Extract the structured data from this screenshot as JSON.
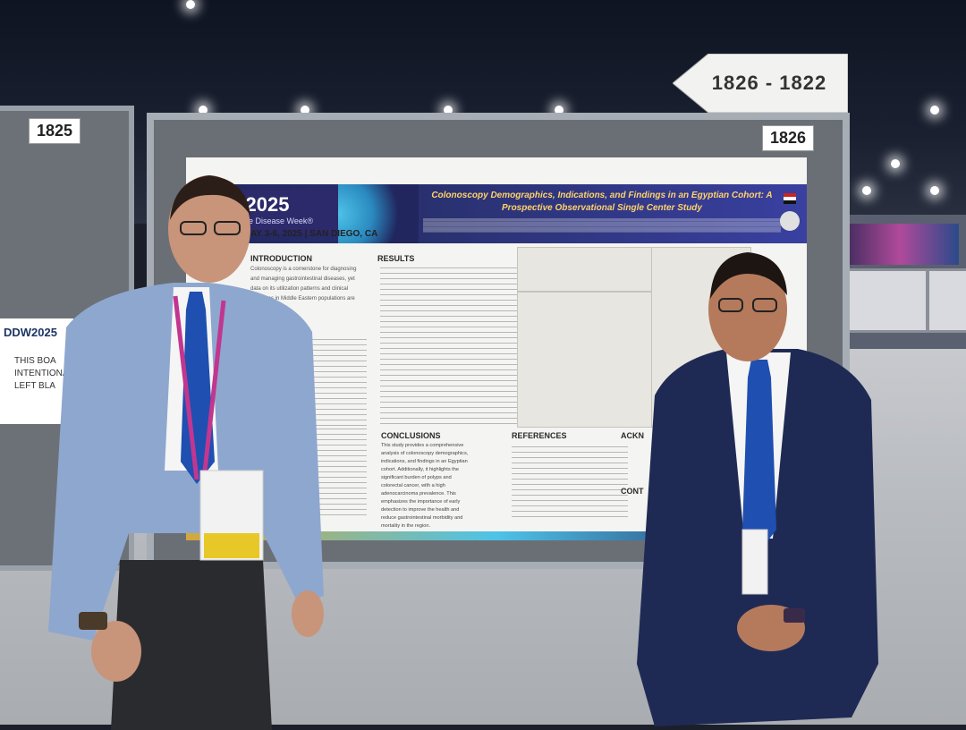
{
  "signs": {
    "arrow_range": "1826 - 1822",
    "left_booth_number": "1825",
    "main_booth_number": "1826",
    "side_logo": "DDW2025",
    "side_note": "THIS BOA\nINTENTIONA\nLEFT BLA"
  },
  "poster": {
    "logo": "DDW2025",
    "logo_subtitle": "Digestive Disease Week®",
    "event_dates": "AY 3-6, 2025 | SAN DIEGO, CA",
    "title": "Colonoscopy Demographics, Indications, and Findings in an Egyptian Cohort: A Prospective Observational Single Center Study",
    "sections": {
      "introduction": "INTRODUCTION",
      "results": "RESULTS",
      "conclusions": "CONCLUSIONS",
      "references": "REFERENCES",
      "acknowledgements": "ACKN",
      "contact": "CONT"
    },
    "intro_text": "Colonoscopy is a cornerstone for diagnosing and managing gastrointestinal diseases, yet data on its utilization patterns and clinical outcomes in Middle Eastern populations are",
    "conclusion_text": "This study provides a comprehensive analysis of colonoscopy demographics, indications, and findings in an Egyptian cohort. Additionally, it highlights the significant burden of polyps and colorectal cancer, with a high adenocarcinoma prevalence. This emphasizes the importance of early detection to improve the health and reduce gastrointestinal morbidity and mortality in the region."
  },
  "colors": {
    "poster_header": "#21265e",
    "poster_title": "#ffd36a",
    "lanyard_left": "#c2368f"
  }
}
